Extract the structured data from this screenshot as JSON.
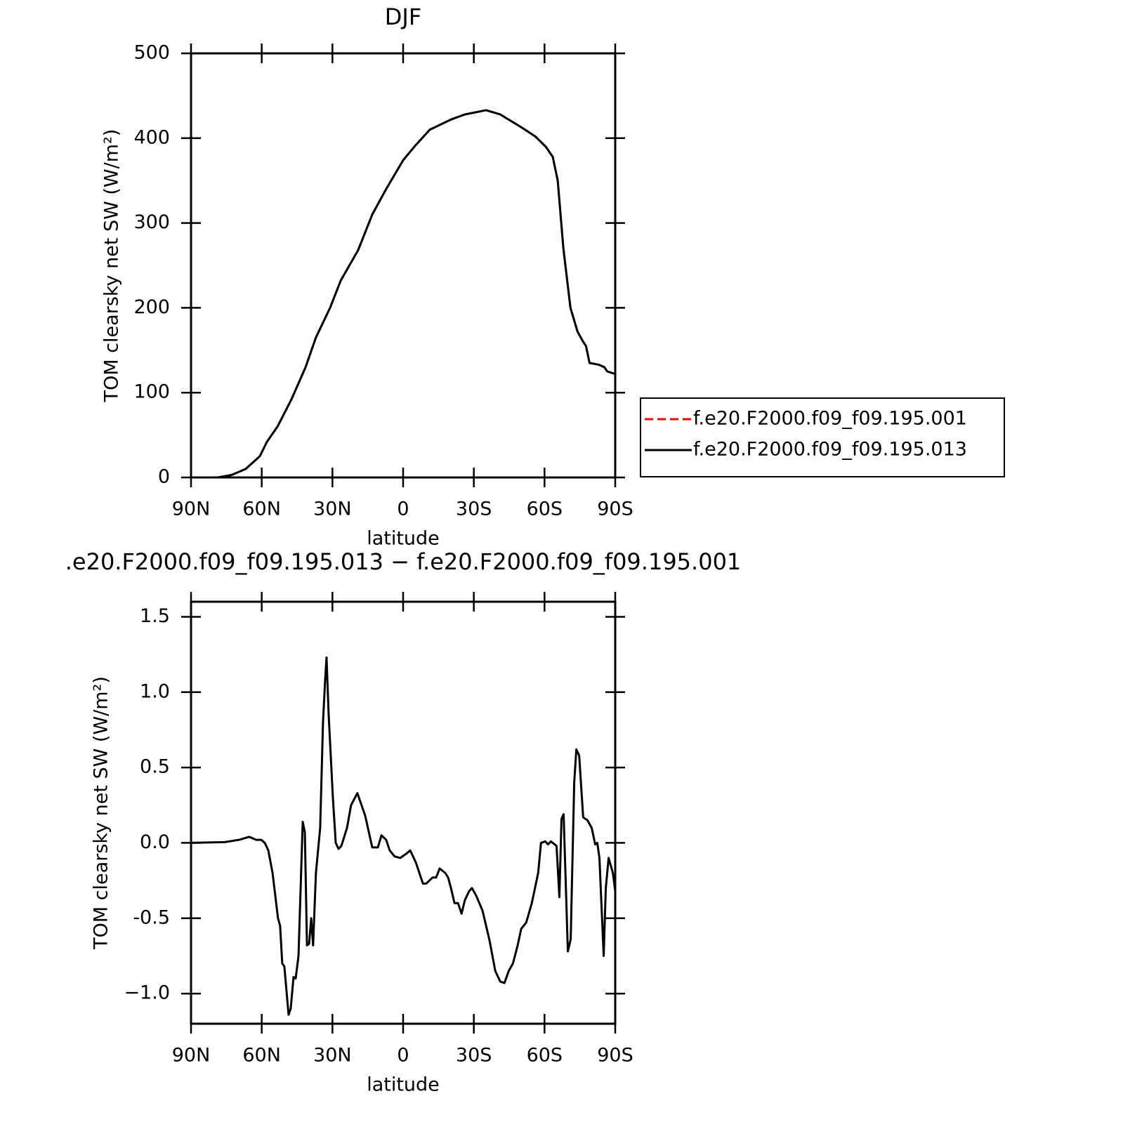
{
  "chart_data": [
    {
      "type": "line",
      "title": "DJF",
      "xlabel": "latitude",
      "ylabel": "TOM clearsky net SW (W/m²)",
      "x": [
        90,
        78.7,
        72.7,
        66.8,
        60.8,
        57.8,
        53.3,
        47.4,
        41.4,
        37.0,
        31.0,
        26.5,
        19.1,
        13.1,
        7.2,
        0,
        -5.4,
        -11.3,
        -20.3,
        -26.2,
        -35.2,
        -41.2,
        -50.1,
        -56.1,
        -60.5,
        -63.5,
        -65.6,
        -68.0,
        -71.0,
        -74.0,
        -76.4,
        -77.6,
        -79.1,
        -83.0,
        -85.4,
        -86.6,
        -90
      ],
      "series": [
        {
          "name": "f.e20.F2000.f09_f09.195.001",
          "color": "#ff0000",
          "line_style": "dashed",
          "values": [
            0,
            0,
            3,
            10,
            25,
            42,
            60,
            92,
            130,
            165,
            200,
            232,
            268,
            310,
            340,
            374,
            392,
            410,
            422,
            428,
            433,
            428,
            413,
            402,
            390,
            378,
            350,
            270,
            200,
            172,
            160,
            155,
            135,
            133,
            130,
            125,
            122
          ]
        },
        {
          "name": "f.e20.F2000.f09_f09.195.013",
          "color": "#000000",
          "line_style": "solid",
          "values": [
            0,
            0,
            3,
            10,
            25,
            42,
            60,
            92,
            130,
            165,
            200,
            232,
            268,
            310,
            340,
            374,
            392,
            410,
            422,
            428,
            433,
            428,
            413,
            402,
            390,
            378,
            350,
            270,
            200,
            172,
            160,
            155,
            135,
            133,
            130,
            125,
            122
          ]
        }
      ],
      "xlim": [
        90,
        -90
      ],
      "xticks": [
        {
          "value": 90,
          "label": "90N"
        },
        {
          "value": 60,
          "label": "60N"
        },
        {
          "value": 30,
          "label": "30N"
        },
        0,
        {
          "value": -30,
          "label": "30S"
        },
        {
          "value": -60,
          "label": "60S"
        },
        {
          "value": -90,
          "label": "90S"
        }
      ],
      "ylim": [
        0,
        500
      ],
      "yticks": [
        0,
        100,
        200,
        300,
        400,
        500
      ],
      "legend": "right"
    },
    {
      "type": "line",
      "title": ".e20.F2000.f09_f09.195.013 − f.e20.F2000.f09_f09.195.001",
      "xlabel": "latitude",
      "ylabel": "TOM clearsky net SW (W/m²)",
      "x": [
        90,
        75.7,
        69.7,
        65.3,
        62.3,
        60.2,
        58.7,
        57.2,
        55.4,
        53.1,
        52.2,
        51.3,
        50.4,
        48.6,
        47.7,
        46.5,
        45.6,
        44.4,
        42.6,
        41.7,
        40.8,
        39.9,
        39.0,
        38.2,
        37.0,
        35.2,
        34.0,
        33.1,
        32.5,
        31.6,
        29.8,
        28.6,
        27.4,
        26.2,
        23.8,
        22.1,
        19.4,
        16.1,
        13.1,
        10.7,
        9.2,
        7.2,
        5.7,
        3.6,
        1.2,
        -1.5,
        -3.0,
        -5.4,
        -8.4,
        -9.8,
        -12.5,
        -14.0,
        -15.5,
        -17.9,
        -19.1,
        -20.3,
        -21.8,
        -23.3,
        -24.8,
        -26.2,
        -28.0,
        -29.2,
        -31.0,
        -33.7,
        -36.7,
        -39.1,
        -41.2,
        -43.0,
        -44.8,
        -46.6,
        -48.6,
        -50.1,
        -52.2,
        -54.6,
        -57.3,
        -58.5,
        -60.3,
        -61.5,
        -62.7,
        -65.1,
        -66.3,
        -67.2,
        -68.1,
        -69.9,
        -71.1,
        -72.6,
        -73.5,
        -74.7,
        -76.4,
        -78.2,
        -80.0,
        -81.5,
        -82.4,
        -83.3,
        -85.1,
        -86.0,
        -87.2,
        -89.0,
        -90
      ],
      "values": [
        0,
        0.005,
        0.02,
        0.04,
        0.02,
        0.02,
        0,
        -0.05,
        -0.2,
        -0.5,
        -0.55,
        -0.8,
        -0.82,
        -1.14,
        -1.1,
        -0.89,
        -0.9,
        -0.75,
        0.14,
        0.07,
        -0.68,
        -0.67,
        -0.5,
        -0.68,
        -0.2,
        0.1,
        0.8,
        1.08,
        1.23,
        0.85,
        0.3,
        0,
        -0.04,
        -0.02,
        0.1,
        0.25,
        0.33,
        0.18,
        -0.03,
        -0.03,
        0.05,
        0.02,
        -0.05,
        -0.09,
        -0.1,
        -0.07,
        -0.05,
        -0.13,
        -0.27,
        -0.27,
        -0.23,
        -0.23,
        -0.17,
        -0.2,
        -0.23,
        -0.3,
        -0.4,
        -0.4,
        -0.47,
        -0.38,
        -0.32,
        -0.3,
        -0.35,
        -0.45,
        -0.65,
        -0.85,
        -0.92,
        -0.93,
        -0.85,
        -0.8,
        -0.68,
        -0.57,
        -0.53,
        -0.4,
        -0.2,
        0,
        0.01,
        -0.01,
        0.01,
        -0.02,
        -0.36,
        0.16,
        0.19,
        -0.72,
        -0.64,
        0.4,
        0.62,
        0.58,
        0.17,
        0.15,
        0.1,
        -0.01,
        0,
        -0.1,
        -0.75,
        -0.3,
        -0.1,
        -0.2,
        -0.32
      ],
      "color": "#000000",
      "xlim": [
        90,
        -90
      ],
      "xticks": [
        {
          "value": 90,
          "label": "90N"
        },
        {
          "value": 60,
          "label": "60N"
        },
        {
          "value": 30,
          "label": "30N"
        },
        0,
        {
          "value": -30,
          "label": "30S"
        },
        {
          "value": -60,
          "label": "60S"
        },
        {
          "value": -90,
          "label": "90S"
        }
      ],
      "ylim": [
        -1.2,
        1.6
      ],
      "yticks": [
        {
          "value": -1,
          "label": "−1.0"
        },
        -0.5,
        {
          "value": 0,
          "label": "0.0"
        },
        0.5,
        {
          "value": 1,
          "label": "1.0"
        },
        1.5
      ]
    }
  ]
}
